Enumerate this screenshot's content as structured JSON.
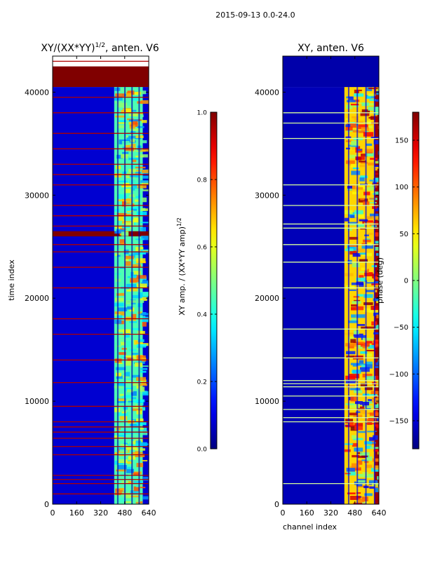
{
  "figure": {
    "suptitle": "2015-09-13 0.0-24.0"
  },
  "chart_data": [
    {
      "type": "heatmap",
      "title_main": "XY/(XX*YY)",
      "title_exp": "1/2",
      "title_rest": ", anten. V6",
      "xlabel": "",
      "ylabel": "time index",
      "xlim": [
        0,
        640
      ],
      "ylim": [
        0,
        43500
      ],
      "xticks": [
        0,
        160,
        320,
        480,
        640
      ],
      "yticks": [
        0,
        10000,
        20000,
        30000,
        40000
      ],
      "colorbar": {
        "label_main": "XY amp. / (XX*YY amp)",
        "label_exp": "1/2",
        "range": [
          0,
          1
        ],
        "ticks": [
          "0.0",
          "0.2",
          "0.4",
          "0.6",
          "0.8",
          "1.0"
        ],
        "tick_values": [
          0,
          0.2,
          0.4,
          0.6,
          0.8,
          1.0
        ]
      },
      "bands": [
        {
          "name": "background",
          "x": [
            0,
            640
          ],
          "y": [
            0,
            40500
          ],
          "value": 0.08
        },
        {
          "name": "signal-region",
          "x": [
            410,
            600
          ],
          "y": [
            0,
            40500
          ],
          "value": 0.45
        },
        {
          "name": "saturated-top",
          "x": [
            0,
            640
          ],
          "y": [
            40500,
            42500
          ],
          "value": 1.0
        },
        {
          "name": "saturated-row-26000",
          "x": [
            0,
            640
          ],
          "y": [
            26000,
            26500
          ],
          "value": 1.0
        }
      ],
      "flag_rows": [
        1000,
        2000,
        2400,
        2800,
        4800,
        5600,
        6400,
        7000,
        7500,
        8000,
        9500,
        11800,
        14000,
        16500,
        18000,
        21000,
        23000,
        24500,
        25200,
        27000,
        28000,
        29000,
        31000,
        32000,
        33000,
        34500,
        36000,
        38000,
        39500,
        43000
      ]
    },
    {
      "type": "heatmap",
      "title": "XY, anten. V6",
      "xlabel": "channel index",
      "ylabel": "",
      "xlim": [
        0,
        640
      ],
      "ylim": [
        0,
        43500
      ],
      "xticks": [
        0,
        160,
        320,
        480,
        640
      ],
      "yticks": [
        0,
        10000,
        20000,
        30000,
        40000
      ],
      "colorbar": {
        "label": "phase (deg)",
        "range": [
          -180,
          180
        ],
        "ticks": [
          "−150",
          "−100",
          "−50",
          "0",
          "50",
          "100",
          "150"
        ],
        "tick_values": [
          -150,
          -100,
          -50,
          0,
          50,
          100,
          150
        ]
      },
      "bands": [
        {
          "name": "background",
          "x": [
            0,
            640
          ],
          "y": [
            0,
            40500
          ],
          "value": -160
        },
        {
          "name": "signal-region",
          "x": [
            410,
            640
          ],
          "y": [
            0,
            40500
          ],
          "value": 60
        },
        {
          "name": "phase-wrap-right",
          "x": [
            610,
            640
          ],
          "y": [
            0,
            40500
          ],
          "value": 170
        },
        {
          "name": "top-band",
          "x": [
            0,
            640
          ],
          "y": [
            40500,
            43500
          ],
          "value": -165
        }
      ],
      "flag_rows": [
        2000,
        8000,
        8400,
        9200,
        10500,
        11400,
        11700,
        12000,
        14200,
        17000,
        21000,
        23500,
        25200,
        26800,
        27200,
        29000,
        31000,
        35500,
        37000,
        38000
      ]
    }
  ]
}
